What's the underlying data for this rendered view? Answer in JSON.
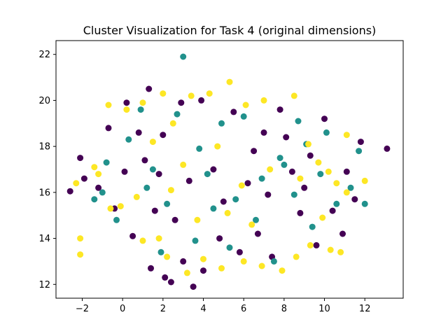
{
  "chart_data": {
    "type": "scatter",
    "title": "Cluster Visualization for Task 4 (original dimensions)",
    "xlabel": "",
    "ylabel": "",
    "xlim": [
      -3.3,
      13.9
    ],
    "ylim": [
      11.4,
      22.6
    ],
    "xticks": [
      -2,
      0,
      2,
      4,
      6,
      8,
      10,
      12
    ],
    "yticks": [
      12,
      14,
      16,
      18,
      20,
      22
    ],
    "grid": false,
    "legend": "none",
    "series": [
      {
        "color": "#440154",
        "points": [
          [
            -2.6,
            16.05
          ],
          [
            -2.1,
            17.5
          ],
          [
            -1.9,
            16.6
          ],
          [
            -1.2,
            16.2
          ],
          [
            -0.7,
            18.8
          ],
          [
            0.1,
            16.9
          ],
          [
            0.2,
            19.9
          ],
          [
            0.8,
            18.6
          ],
          [
            1.1,
            17.4
          ],
          [
            1.3,
            20.5
          ],
          [
            1.4,
            12.7
          ],
          [
            1.6,
            15.2
          ],
          [
            2.0,
            18.5
          ],
          [
            2.1,
            12.3
          ],
          [
            2.4,
            12.1
          ],
          [
            2.9,
            19.9
          ],
          [
            3.0,
            13.0
          ],
          [
            3.5,
            11.9
          ],
          [
            3.9,
            20.0
          ],
          [
            4.0,
            12.6
          ],
          [
            4.5,
            17.0
          ],
          [
            5.0,
            15.6
          ],
          [
            5.5,
            19.5
          ],
          [
            6.2,
            16.4
          ],
          [
            6.7,
            14.2
          ],
          [
            7.0,
            18.6
          ],
          [
            7.4,
            13.2
          ],
          [
            7.8,
            19.6
          ],
          [
            8.4,
            16.9
          ],
          [
            8.8,
            15.1
          ],
          [
            9.3,
            17.6
          ],
          [
            10.0,
            19.2
          ],
          [
            10.4,
            15.2
          ],
          [
            11.1,
            16.9
          ],
          [
            11.5,
            15.7
          ],
          [
            11.8,
            18.2
          ],
          [
            13.1,
            17.9
          ],
          [
            10.9,
            14.2
          ],
          [
            9.6,
            13.7
          ],
          [
            5.8,
            13.4
          ],
          [
            3.3,
            16.5
          ],
          [
            2.6,
            14.8
          ],
          [
            0.5,
            14.1
          ],
          [
            -0.4,
            15.3
          ],
          [
            1.8,
            16.8
          ],
          [
            6.5,
            17.8
          ],
          [
            8.1,
            18.4
          ],
          [
            4.8,
            14.0
          ],
          [
            7.2,
            15.9
          ],
          [
            9.0,
            16.2
          ]
        ]
      },
      {
        "color": "#21918c",
        "points": [
          [
            3.0,
            21.9
          ],
          [
            -1.0,
            16.0
          ],
          [
            -1.4,
            15.7
          ],
          [
            -0.3,
            14.8
          ],
          [
            0.9,
            19.6
          ],
          [
            1.5,
            17.0
          ],
          [
            1.9,
            13.4
          ],
          [
            2.7,
            19.4
          ],
          [
            3.6,
            13.9
          ],
          [
            4.2,
            16.8
          ],
          [
            4.9,
            19.0
          ],
          [
            5.6,
            15.7
          ],
          [
            6.0,
            19.3
          ],
          [
            6.9,
            16.6
          ],
          [
            7.5,
            13.0
          ],
          [
            8.0,
            17.2
          ],
          [
            8.7,
            19.1
          ],
          [
            9.4,
            14.5
          ],
          [
            10.1,
            18.6
          ],
          [
            10.6,
            15.5
          ],
          [
            11.3,
            16.2
          ],
          [
            11.7,
            17.8
          ],
          [
            12.0,
            15.5
          ],
          [
            9.8,
            16.8
          ],
          [
            5.3,
            13.6
          ],
          [
            2.2,
            15.5
          ],
          [
            0.3,
            18.3
          ],
          [
            -0.8,
            17.3
          ],
          [
            3.8,
            17.9
          ],
          [
            6.6,
            14.8
          ],
          [
            8.5,
            15.9
          ],
          [
            7.8,
            17.5
          ],
          [
            4.5,
            15.3
          ],
          [
            1.2,
            16.2
          ],
          [
            9.1,
            18.1
          ]
        ]
      },
      {
        "color": "#fde725",
        "points": [
          [
            -2.1,
            14.0
          ],
          [
            -2.1,
            13.3
          ],
          [
            -2.3,
            16.4
          ],
          [
            -1.4,
            17.1
          ],
          [
            -1.2,
            16.8
          ],
          [
            -0.7,
            19.8
          ],
          [
            -0.6,
            15.3
          ],
          [
            0.2,
            19.6
          ],
          [
            1.0,
            19.9
          ],
          [
            2.0,
            20.3
          ],
          [
            2.5,
            19.0
          ],
          [
            3.4,
            20.2
          ],
          [
            4.3,
            20.3
          ],
          [
            5.3,
            20.8
          ],
          [
            6.1,
            19.8
          ],
          [
            7.0,
            20.0
          ],
          [
            8.5,
            20.2
          ],
          [
            9.2,
            18.1
          ],
          [
            10.2,
            16.9
          ],
          [
            10.6,
            16.4
          ],
          [
            11.1,
            18.5
          ],
          [
            12.0,
            16.5
          ],
          [
            11.1,
            16.0
          ],
          [
            10.3,
            13.5
          ],
          [
            10.8,
            13.4
          ],
          [
            9.9,
            14.9
          ],
          [
            9.3,
            13.7
          ],
          [
            8.6,
            13.2
          ],
          [
            7.9,
            12.6
          ],
          [
            6.9,
            12.8
          ],
          [
            6.0,
            13.0
          ],
          [
            4.9,
            12.7
          ],
          [
            4.0,
            13.1
          ],
          [
            3.2,
            12.5
          ],
          [
            2.2,
            13.2
          ],
          [
            1.8,
            14.0
          ],
          [
            1.0,
            13.9
          ],
          [
            0.7,
            15.8
          ],
          [
            -0.1,
            15.4
          ],
          [
            1.5,
            18.2
          ],
          [
            3.0,
            17.2
          ],
          [
            4.7,
            18.0
          ],
          [
            5.9,
            16.3
          ],
          [
            7.3,
            17.0
          ],
          [
            8.8,
            16.6
          ],
          [
            6.4,
            14.6
          ],
          [
            3.7,
            14.8
          ],
          [
            2.4,
            16.1
          ],
          [
            9.7,
            17.3
          ],
          [
            5.2,
            15.1
          ]
        ]
      }
    ]
  }
}
